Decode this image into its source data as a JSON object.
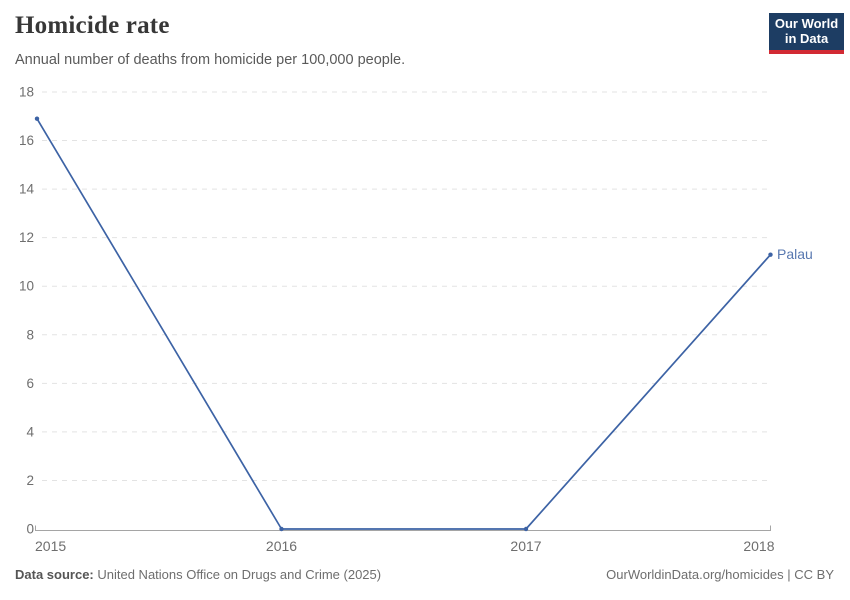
{
  "header": {
    "title": "Homicide rate",
    "subtitle": "Annual number of deaths from homicide per 100,000 people.",
    "logo": {
      "line1": "Our World",
      "line2": "in Data",
      "bg_color": "#1d3d63",
      "accent_color": "#d22a33"
    }
  },
  "chart_data": {
    "type": "line",
    "title": "Homicide rate",
    "subtitle": "Annual number of deaths from homicide per 100,000 people.",
    "x": [
      "2015",
      "2016",
      "2017",
      "2018"
    ],
    "series": [
      {
        "name": "Palau",
        "values": [
          16.9,
          0,
          0,
          11.3
        ],
        "color": "#3d63a5",
        "label_color": "#5878b0"
      }
    ],
    "ylim": [
      0,
      18
    ],
    "y_ticks": [
      0,
      2,
      4,
      6,
      8,
      10,
      12,
      14,
      16,
      18
    ],
    "xlabel": "",
    "ylabel": "",
    "grid": "horizontal-dashed",
    "grid_color": "#e3e3e3",
    "axis_color": "#a5a5a5",
    "tick_color": "#6e6e6e",
    "legend_position": "end-of-line-label",
    "marker": "dot"
  },
  "footer": {
    "source_label": "Data source:",
    "source_text": " United Nations Office on Drugs and Crime (2025)",
    "right_text": "OurWorldinData.org/homicides | CC BY"
  }
}
